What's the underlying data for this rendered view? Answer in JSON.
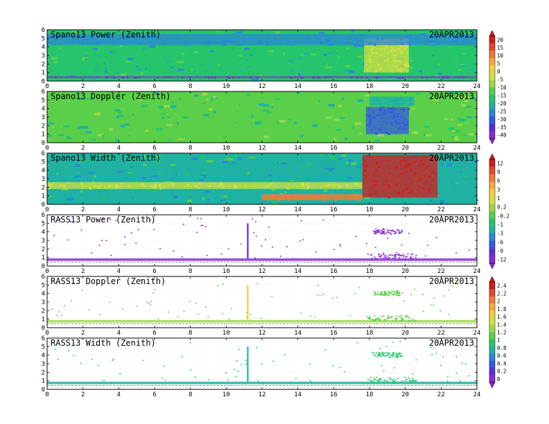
{
  "figure": {
    "x_ticks": [
      "0",
      "2",
      "4",
      "6",
      "8",
      "10",
      "12",
      "14",
      "16",
      "18",
      "20",
      "22",
      "24"
    ],
    "y_ticks": [
      "0",
      "1",
      "2",
      "3",
      "4",
      "5",
      "6"
    ],
    "colorbars": [
      {
        "labels": [
          "20",
          "15",
          "10",
          "5",
          "0",
          "-5",
          "-10",
          "-15",
          "-20",
          "-25",
          "-30",
          "-35",
          "-40"
        ],
        "colors": [
          "#d7191c",
          "#e8452a",
          "#f47a34",
          "#f9a83c",
          "#f2cf3b",
          "#d5e040",
          "#9fd845",
          "#5bcf4a",
          "#25c56b",
          "#1fb2a2",
          "#2a86d8",
          "#3559e0",
          "#5a2fd8",
          "#8a2bd6"
        ]
      },
      {
        "labels": [
          "12",
          "9",
          "6",
          "3",
          "1",
          "0.2",
          "-0.2",
          "-1",
          "-3",
          "-6",
          "-9",
          "-12"
        ],
        "colors": [
          "#d7191c",
          "#e8452a",
          "#f47a34",
          "#f9a83c",
          "#f2cf3b",
          "#d5e040",
          "#9fd845",
          "#5bcf4a",
          "#25c56b",
          "#1fb2a2",
          "#2a86d8",
          "#3559e0",
          "#5a2fd8",
          "#8a2bd6"
        ]
      },
      {
        "labels": [
          "2.4",
          "2.2",
          "2",
          "1.8",
          "1.6",
          "1.4",
          "1.2",
          "1",
          "0.8",
          "0.6",
          "0.4",
          "0.2",
          "0"
        ],
        "colors": [
          "#d7191c",
          "#e8452a",
          "#f47a34",
          "#f9a83c",
          "#f2cf3b",
          "#d5e040",
          "#9fd845",
          "#5bcf4a",
          "#25c56b",
          "#1fb2a2",
          "#2a86d8",
          "#3559e0",
          "#5a2fd8",
          "#8a2bd6"
        ]
      }
    ]
  },
  "chart_data": [
    {
      "type": "heatmap",
      "title": "Spano13 Power (Zenith)",
      "date": "20APR2013",
      "xlim": [
        0,
        24
      ],
      "ylim": [
        0,
        6
      ],
      "base_color": "#25c56b",
      "noise_colors": [
        "#1fb2a2",
        "#2a86d8",
        "#5bcf4a",
        "#25c56b"
      ],
      "features": [
        {
          "x": [
            17.7,
            20.2
          ],
          "y": [
            1.0,
            5.0
          ],
          "color": "#d5e040"
        },
        {
          "x": [
            0,
            24
          ],
          "y": [
            0.35,
            0.55
          ],
          "color": "#8a2bd6"
        },
        {
          "x": [
            0,
            24
          ],
          "y": [
            4.2,
            5.5
          ],
          "color": "#2a86d8"
        }
      ]
    },
    {
      "type": "heatmap",
      "title": "Spano13 Doppler (Zenith)",
      "date": "20APR2013",
      "xlim": [
        0,
        24
      ],
      "ylim": [
        0,
        6
      ],
      "base_color": "#5bcf4a",
      "noise_colors": [
        "#9fd845",
        "#25c56b",
        "#1fb2a2",
        "#5bcf4a"
      ],
      "features": [
        {
          "x": [
            17.8,
            20.2
          ],
          "y": [
            1.0,
            4.2
          ],
          "color": "#3559e0"
        },
        {
          "x": [
            18.0,
            20.5
          ],
          "y": [
            4.3,
            5.4
          ],
          "color": "#1fb2a2"
        }
      ]
    },
    {
      "type": "heatmap",
      "title": "Spano13 Width (Zenith)",
      "date": "20APR2013",
      "xlim": [
        0,
        24
      ],
      "ylim": [
        0,
        6
      ],
      "base_color": "#1fb2a2",
      "noise_colors": [
        "#25c56b",
        "#5bcf4a",
        "#2a86d8",
        "#1fb2a2"
      ],
      "features": [
        {
          "x": [
            17.6,
            21.8
          ],
          "y": [
            0.8,
            5.8
          ],
          "color": "#d7191c"
        },
        {
          "x": [
            0,
            17.6
          ],
          "y": [
            1.8,
            2.6
          ],
          "color": "#d5e040"
        },
        {
          "x": [
            12,
            17.6
          ],
          "y": [
            0.5,
            1.2
          ],
          "color": "#f47a34"
        }
      ]
    },
    {
      "type": "scatter",
      "title": "RASS13 Power (Zenith)",
      "date": "20APR2013",
      "xlim": [
        0,
        24
      ],
      "ylim": [
        0,
        6
      ],
      "band_y": [
        0.6,
        0.9
      ],
      "band_color": "#8a2bd6",
      "dot_color": "#8a2bd6",
      "spike_x": 11.2,
      "spike_color": "#5a2fd8",
      "clusters": [
        {
          "x": [
            17.8,
            20.6
          ],
          "y": [
            0.8,
            1.5
          ]
        },
        {
          "x": [
            18.2,
            19.8
          ],
          "y": [
            3.8,
            4.4
          ]
        }
      ]
    },
    {
      "type": "scatter",
      "title": "RASS13 Doppler (Zenith)",
      "date": "20APR2013",
      "xlim": [
        0,
        24
      ],
      "ylim": [
        0,
        6
      ],
      "band_y": [
        0.6,
        0.9
      ],
      "band_color": "#9fd845",
      "dot_color": "#5bcf4a",
      "spike_x": 11.2,
      "spike_color": "#f2cf3b",
      "clusters": [
        {
          "x": [
            17.8,
            20.6
          ],
          "y": [
            0.8,
            1.5
          ]
        },
        {
          "x": [
            18.2,
            19.8
          ],
          "y": [
            3.8,
            4.4
          ]
        }
      ]
    },
    {
      "type": "scatter",
      "title": "RASS13 Width (Zenith)",
      "date": "20APR2013",
      "xlim": [
        0,
        24
      ],
      "ylim": [
        0,
        6
      ],
      "band_y": [
        0.6,
        0.9
      ],
      "band_color": "#1fb2a2",
      "dot_color": "#25c56b",
      "spike_x": 11.2,
      "spike_color": "#1fb2a2",
      "clusters": [
        {
          "x": [
            17.8,
            20.6
          ],
          "y": [
            0.8,
            1.5
          ]
        },
        {
          "x": [
            18.2,
            19.8
          ],
          "y": [
            3.8,
            4.4
          ]
        }
      ]
    }
  ]
}
